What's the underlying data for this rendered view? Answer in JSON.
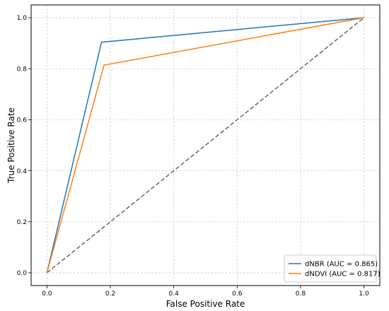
{
  "chart_data": {
    "type": "line",
    "title": "",
    "xlabel": "False Positive Rate",
    "ylabel": "True Positive Rate",
    "xlim": [
      -0.05,
      1.05
    ],
    "ylim": [
      -0.05,
      1.05
    ],
    "xticks": [
      0.0,
      0.2,
      0.4,
      0.6,
      0.8,
      1.0
    ],
    "yticks": [
      0.0,
      0.2,
      0.4,
      0.6,
      0.8,
      1.0
    ],
    "xtick_labels": [
      "0.0",
      "0.2",
      "0.4",
      "0.6",
      "0.8",
      "1.0"
    ],
    "ytick_labels": [
      "0.0",
      "0.2",
      "0.4",
      "0.6",
      "0.8",
      "1.0"
    ],
    "grid": true,
    "legend_position": "lower-right",
    "series": [
      {
        "name": "dNBR (AUC = 0.865)",
        "color": "#1f77b4",
        "style": "solid",
        "x": [
          0.0,
          0.172,
          1.0
        ],
        "y": [
          0.0,
          0.904,
          1.0
        ]
      },
      {
        "name": "dNDVI (AUC = 0.817)",
        "color": "#ff7f0e",
        "style": "solid",
        "x": [
          0.0,
          0.18,
          1.0
        ],
        "y": [
          0.0,
          0.814,
          1.0
        ]
      }
    ],
    "reference_line": {
      "color": "#666666",
      "style": "dashed",
      "x": [
        0.0,
        1.0
      ],
      "y": [
        0.0,
        1.0
      ]
    }
  }
}
